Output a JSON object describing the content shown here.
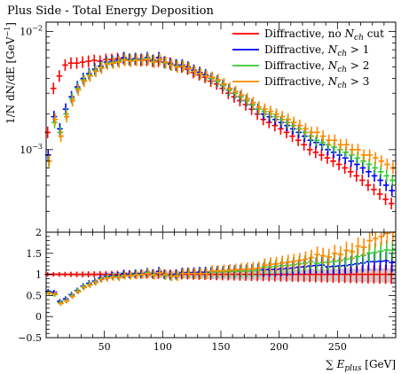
{
  "chart_data": {
    "type": "scatter",
    "title": "Plus Side - Total Energy Deposition",
    "xlabel": "∑ E_plus [GeV]",
    "ylabel": "1/N dN/dE [GeV^-1]",
    "xlim": [
      0,
      300
    ],
    "top_panel": {
      "ylim": [
        0.0002,
        0.012
      ],
      "yscale": "log",
      "y_tick_labels": [
        "10^-3",
        "10^-2"
      ]
    },
    "ratio_panel": {
      "ylim": [
        -0.5,
        2
      ],
      "y_ticks": [
        "-0.5",
        "0",
        "0.5",
        "1",
        "1.5",
        "2"
      ],
      "band": {
        "x": [
          0,
          300
        ],
        "y_low": [
          0.97,
          0.8
        ],
        "y_high": [
          1.03,
          1.15
        ]
      }
    },
    "x_ticks": [
      "50",
      "100",
      "150",
      "200",
      "250"
    ],
    "legend_position": "top-right",
    "series": [
      {
        "name": "Diffractive, no N_ch cut",
        "legend_label": "Diffractive, no ",
        "legend_sub": "N",
        "legend_subscript": "ch",
        "legend_suffix": " cut",
        "color": "#ff0000",
        "x": [
          2,
          7,
          12,
          17,
          22,
          27,
          32,
          37,
          42,
          47,
          52,
          57,
          62,
          67,
          72,
          77,
          82,
          87,
          92,
          97,
          102,
          107,
          112,
          117,
          122,
          127,
          132,
          137,
          142,
          147,
          152,
          157,
          162,
          167,
          172,
          177,
          182,
          187,
          192,
          197,
          202,
          207,
          212,
          217,
          222,
          227,
          232,
          237,
          242,
          247,
          252,
          257,
          262,
          267,
          272,
          277,
          282,
          287,
          292,
          297
        ],
        "y": [
          0.0014,
          0.0033,
          0.0042,
          0.0052,
          0.0054,
          0.0054,
          0.0055,
          0.0056,
          0.0057,
          0.0056,
          0.0058,
          0.0058,
          0.0059,
          0.0059,
          0.0058,
          0.0058,
          0.0057,
          0.0057,
          0.0056,
          0.0056,
          0.0055,
          0.0054,
          0.0052,
          0.005,
          0.0048,
          0.0045,
          0.0043,
          0.0041,
          0.0038,
          0.0036,
          0.0033,
          0.003,
          0.0028,
          0.0026,
          0.0024,
          0.0022,
          0.002,
          0.0018,
          0.0017,
          0.0016,
          0.0015,
          0.0014,
          0.0013,
          0.0012,
          0.0011,
          0.001,
          0.00095,
          0.0009,
          0.00085,
          0.0008,
          0.00075,
          0.0007,
          0.00065,
          0.0006,
          0.00055,
          0.0005,
          0.00046,
          0.00042,
          0.00038,
          0.00035
        ],
        "ratio": [
          1,
          1,
          1,
          1,
          1,
          1,
          1,
          1,
          1,
          1,
          1,
          1,
          1,
          1,
          1,
          1,
          1,
          1,
          1,
          1,
          1,
          1,
          1,
          1,
          1,
          1,
          1,
          1,
          1,
          1,
          1,
          1,
          1,
          1,
          1,
          1,
          1,
          1,
          1,
          1,
          1,
          1,
          1,
          1,
          1,
          1,
          1,
          1,
          1,
          1,
          1,
          1,
          1,
          1,
          1,
          1,
          1,
          1,
          1,
          1
        ]
      },
      {
        "name": "Diffractive, N_ch > 1",
        "legend_label": "Diffractive, ",
        "legend_sub": "N",
        "legend_subscript": "ch",
        "legend_suffix": " > 1",
        "color": "#0000ff",
        "x": [
          2,
          7,
          12,
          17,
          22,
          27,
          32,
          37,
          42,
          47,
          52,
          57,
          62,
          67,
          72,
          77,
          82,
          87,
          92,
          97,
          102,
          107,
          112,
          117,
          122,
          127,
          132,
          137,
          142,
          147,
          152,
          157,
          162,
          167,
          172,
          177,
          182,
          187,
          192,
          197,
          202,
          207,
          212,
          217,
          222,
          227,
          232,
          237,
          242,
          247,
          252,
          257,
          262,
          267,
          272,
          277,
          282,
          287,
          292,
          297
        ],
        "y": [
          0.0009,
          0.0019,
          0.0015,
          0.0022,
          0.0028,
          0.0034,
          0.004,
          0.0044,
          0.0048,
          0.0051,
          0.0055,
          0.0056,
          0.0057,
          0.006,
          0.0058,
          0.0059,
          0.0058,
          0.006,
          0.0057,
          0.006,
          0.0055,
          0.0053,
          0.0052,
          0.0052,
          0.005,
          0.0047,
          0.0045,
          0.0043,
          0.004,
          0.0038,
          0.0035,
          0.0032,
          0.003,
          0.0028,
          0.0026,
          0.0024,
          0.0022,
          0.002,
          0.0019,
          0.0018,
          0.0017,
          0.0016,
          0.0015,
          0.0014,
          0.0013,
          0.0012,
          0.00115,
          0.0011,
          0.001,
          0.00095,
          0.0009,
          0.00085,
          0.0008,
          0.00075,
          0.0007,
          0.00065,
          0.0006,
          0.00055,
          0.0005,
          0.00045
        ],
        "ratio": [
          0.6,
          0.58,
          0.36,
          0.42,
          0.52,
          0.62,
          0.72,
          0.79,
          0.84,
          0.91,
          0.95,
          0.97,
          0.97,
          1.02,
          1,
          1.02,
          1.02,
          1.05,
          1.02,
          1.07,
          1,
          0.98,
          1,
          1.04,
          1.04,
          1.04,
          1.05,
          1.05,
          1.05,
          1.06,
          1.06,
          1.07,
          1.07,
          1.08,
          1.08,
          1.09,
          1.1,
          1.11,
          1.12,
          1.12,
          1.13,
          1.14,
          1.15,
          1.17,
          1.18,
          1.2,
          1.21,
          1.22,
          1.18,
          1.19,
          1.2,
          1.21,
          1.23,
          1.25,
          1.27,
          1.3,
          1.3,
          1.31,
          1.32,
          1.28
        ]
      },
      {
        "name": "Diffractive, N_ch > 2",
        "legend_label": "Diffractive, ",
        "legend_sub": "N",
        "legend_subscript": "ch",
        "legend_suffix": " > 2",
        "color": "#33cc33",
        "x": [
          2,
          7,
          12,
          17,
          22,
          27,
          32,
          37,
          42,
          47,
          52,
          57,
          62,
          67,
          72,
          77,
          82,
          87,
          92,
          97,
          102,
          107,
          112,
          117,
          122,
          127,
          132,
          137,
          142,
          147,
          152,
          157,
          162,
          167,
          172,
          177,
          182,
          187,
          192,
          197,
          202,
          207,
          212,
          217,
          222,
          227,
          232,
          237,
          242,
          247,
          252,
          257,
          262,
          267,
          272,
          277,
          282,
          287,
          292,
          297
        ],
        "y": [
          0.0008,
          0.0017,
          0.0014,
          0.002,
          0.0027,
          0.0033,
          0.0039,
          0.0043,
          0.0047,
          0.005,
          0.0054,
          0.0055,
          0.0056,
          0.0058,
          0.0057,
          0.0058,
          0.0057,
          0.0059,
          0.0056,
          0.0058,
          0.0054,
          0.0052,
          0.0051,
          0.0051,
          0.0049,
          0.0046,
          0.0044,
          0.0042,
          0.004,
          0.0038,
          0.0035,
          0.0032,
          0.003,
          0.0028,
          0.0026,
          0.0024,
          0.0022,
          0.0021,
          0.002,
          0.0019,
          0.0018,
          0.0017,
          0.0016,
          0.0015,
          0.0014,
          0.0013,
          0.0012,
          0.00115,
          0.0011,
          0.00105,
          0.001,
          0.00095,
          0.0009,
          0.00085,
          0.0008,
          0.00075,
          0.0007,
          0.00065,
          0.0006,
          0.00055
        ],
        "ratio": [
          0.57,
          0.52,
          0.33,
          0.38,
          0.5,
          0.61,
          0.71,
          0.77,
          0.82,
          0.89,
          0.93,
          0.95,
          0.95,
          0.98,
          0.98,
          1,
          1,
          1.04,
          1,
          1.04,
          0.98,
          0.96,
          0.98,
          1.02,
          1.02,
          1.02,
          1.02,
          1.02,
          1.05,
          1.06,
          1.06,
          1.07,
          1.07,
          1.08,
          1.08,
          1.09,
          1.1,
          1.17,
          1.18,
          1.19,
          1.2,
          1.21,
          1.23,
          1.25,
          1.27,
          1.3,
          1.26,
          1.28,
          1.29,
          1.31,
          1.33,
          1.36,
          1.38,
          1.42,
          1.45,
          1.5,
          1.52,
          1.55,
          1.58,
          1.57
        ]
      },
      {
        "name": "Diffractive, N_ch > 3",
        "legend_label": "Diffractive, ",
        "legend_sub": "N",
        "legend_subscript": "ch",
        "legend_suffix": " > 3",
        "color": "#ff8800",
        "x": [
          2,
          7,
          12,
          17,
          22,
          27,
          32,
          37,
          42,
          47,
          52,
          57,
          62,
          67,
          72,
          77,
          82,
          87,
          92,
          97,
          102,
          107,
          112,
          117,
          122,
          127,
          132,
          137,
          142,
          147,
          152,
          157,
          162,
          167,
          172,
          177,
          182,
          187,
          192,
          197,
          202,
          207,
          212,
          217,
          222,
          227,
          232,
          237,
          242,
          247,
          252,
          257,
          262,
          267,
          272,
          277,
          282,
          287,
          292,
          297
        ],
        "y": [
          0.0008,
          0.0018,
          0.0013,
          0.0019,
          0.0026,
          0.0032,
          0.0038,
          0.0042,
          0.0046,
          0.0049,
          0.0053,
          0.0054,
          0.0055,
          0.0057,
          0.0056,
          0.0057,
          0.0057,
          0.0058,
          0.0055,
          0.0058,
          0.0055,
          0.0052,
          0.005,
          0.0051,
          0.0049,
          0.0046,
          0.0044,
          0.0042,
          0.0041,
          0.0039,
          0.0036,
          0.0033,
          0.0031,
          0.0029,
          0.0027,
          0.0025,
          0.0023,
          0.0022,
          0.0021,
          0.002,
          0.0019,
          0.0018,
          0.0017,
          0.0016,
          0.0015,
          0.0014,
          0.0014,
          0.0013,
          0.0012,
          0.0012,
          0.0011,
          0.0011,
          0.001,
          0.001,
          0.0009,
          0.0009,
          0.00085,
          0.0008,
          0.00075,
          0.0007
        ],
        "ratio": [
          0.55,
          0.54,
          0.31,
          0.37,
          0.48,
          0.59,
          0.69,
          0.75,
          0.81,
          0.88,
          0.91,
          0.93,
          0.93,
          0.97,
          0.97,
          0.98,
          1,
          1.02,
          0.98,
          1.04,
          1,
          0.96,
          0.96,
          1.02,
          1.02,
          1.02,
          1.02,
          1.02,
          1.08,
          1.08,
          1.09,
          1.1,
          1.11,
          1.12,
          1.13,
          1.14,
          1.15,
          1.22,
          1.24,
          1.25,
          1.27,
          1.29,
          1.31,
          1.33,
          1.36,
          1.4,
          1.47,
          1.44,
          1.41,
          1.5,
          1.47,
          1.57,
          1.54,
          1.67,
          1.64,
          1.8,
          1.85,
          1.9,
          1.97,
          2
        ]
      }
    ]
  }
}
